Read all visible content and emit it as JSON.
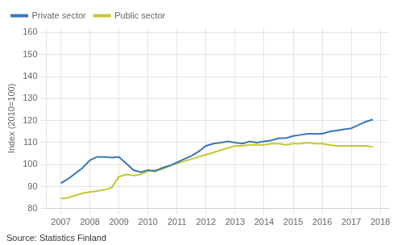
{
  "chart_data": {
    "type": "line",
    "ylabel": "Index (2010=100)",
    "annotations": [
      "Source: Statistics Finland"
    ],
    "x": [
      2007.0,
      2007.25,
      2007.5,
      2007.75,
      2008.0,
      2008.25,
      2008.5,
      2008.75,
      2009.0,
      2009.25,
      2009.5,
      2009.75,
      2010.0,
      2010.25,
      2010.5,
      2010.75,
      2011.0,
      2011.25,
      2011.5,
      2011.75,
      2012.0,
      2012.25,
      2012.5,
      2012.75,
      2013.0,
      2013.25,
      2013.5,
      2013.75,
      2014.0,
      2014.25,
      2014.5,
      2014.75,
      2015.0,
      2015.25,
      2015.5,
      2015.75,
      2016.0,
      2016.25,
      2016.5,
      2016.75,
      2017.0,
      2017.25,
      2017.5,
      2017.75
    ],
    "series": [
      {
        "name": "Private sector",
        "color": "#3a78b5",
        "values": [
          91.5,
          93.5,
          96.0,
          98.5,
          102.0,
          103.5,
          103.5,
          103.2,
          103.5,
          100.5,
          97.5,
          96.5,
          97.5,
          97.0,
          98.5,
          99.5,
          101.0,
          102.5,
          104.0,
          106.0,
          108.5,
          109.5,
          110.0,
          110.5,
          110.0,
          109.5,
          110.5,
          110.0,
          110.5,
          111.0,
          112.0,
          112.0,
          113.0,
          113.5,
          114.0,
          114.0,
          114.0,
          115.0,
          115.5,
          116.0,
          116.5,
          118.0,
          119.5,
          120.5
        ]
      },
      {
        "name": "Public sector",
        "color": "#c5c930",
        "values": [
          84.5,
          85.0,
          86.0,
          87.0,
          87.5,
          88.0,
          88.5,
          89.5,
          94.5,
          95.5,
          95.0,
          95.5,
          97.0,
          97.5,
          98.0,
          99.5,
          100.5,
          101.5,
          102.5,
          103.5,
          104.5,
          105.5,
          106.5,
          107.5,
          108.5,
          108.5,
          109.0,
          109.0,
          109.0,
          109.5,
          109.5,
          109.0,
          109.5,
          109.5,
          110.0,
          109.5,
          109.5,
          109.0,
          108.5,
          108.5,
          108.5,
          108.5,
          108.5,
          108.0
        ]
      }
    ],
    "xlim": [
      2006.5,
      2018.3
    ],
    "ylim": [
      80,
      162
    ],
    "xticks": [
      2007,
      2008,
      2009,
      2010,
      2011,
      2012,
      2013,
      2014,
      2015,
      2016,
      2017,
      2018
    ],
    "yticks": [
      80,
      90,
      100,
      110,
      120,
      130,
      140,
      150,
      160
    ],
    "grid": true,
    "legend": "upper left"
  }
}
